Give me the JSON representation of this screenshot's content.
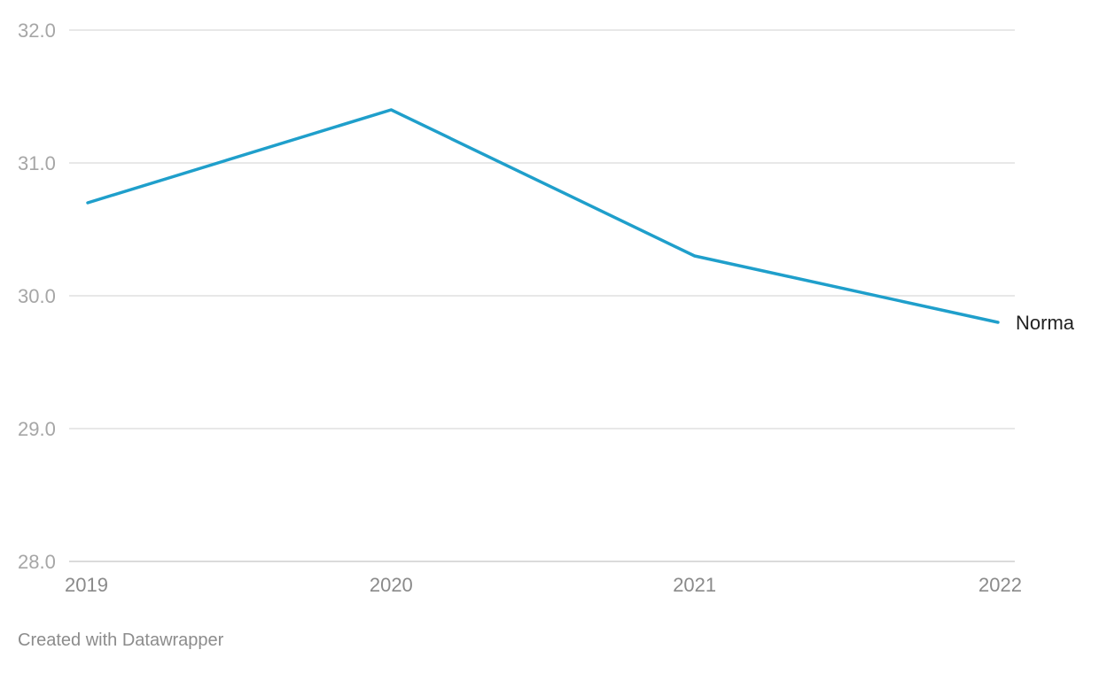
{
  "chart_data": {
    "type": "line",
    "title": "",
    "xlabel": "",
    "ylabel": "",
    "x": [
      "2019",
      "2020",
      "2021",
      "2022"
    ],
    "ylim": [
      28.0,
      32.0
    ],
    "yticks": [
      "28.0",
      "29.0",
      "30.0",
      "31.0",
      "32.0"
    ],
    "grid": true,
    "legend": "inline-end-label",
    "series": [
      {
        "name": "Norma",
        "values": [
          30.7,
          31.4,
          30.3,
          29.8
        ],
        "color": "#1f9fcb"
      }
    ]
  },
  "footer": {
    "credit": "Created with Datawrapper"
  }
}
